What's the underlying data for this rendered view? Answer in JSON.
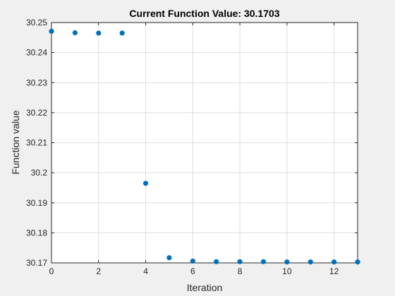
{
  "chart_data": {
    "type": "scatter",
    "title": "Current Function Value: 30.1703",
    "xlabel": "Iteration",
    "ylabel": "Function value",
    "xlim": [
      0,
      13
    ],
    "ylim": [
      30.17,
      30.25
    ],
    "x_ticks": [
      0,
      2,
      4,
      6,
      8,
      10,
      12
    ],
    "x_tick_labels": [
      "0",
      "2",
      "4",
      "6",
      "8",
      "10",
      "12"
    ],
    "y_ticks": [
      30.17,
      30.18,
      30.19,
      30.2,
      30.21,
      30.22,
      30.23,
      30.24,
      30.25
    ],
    "y_tick_labels": [
      "30.17",
      "30.18",
      "30.19",
      "30.2",
      "30.21",
      "30.22",
      "30.23",
      "30.24",
      "30.25"
    ],
    "grid": true,
    "series": [
      {
        "x": [
          0,
          1,
          2,
          3,
          4,
          5,
          6,
          7,
          8,
          9,
          10,
          11,
          12,
          13
        ],
        "y": [
          30.2471,
          30.2466,
          30.2465,
          30.2465,
          30.1965,
          30.1717,
          30.1706,
          30.1704,
          30.1704,
          30.1704,
          30.1703,
          30.1703,
          30.1703,
          30.1703
        ],
        "color": "#0072bd"
      }
    ]
  }
}
